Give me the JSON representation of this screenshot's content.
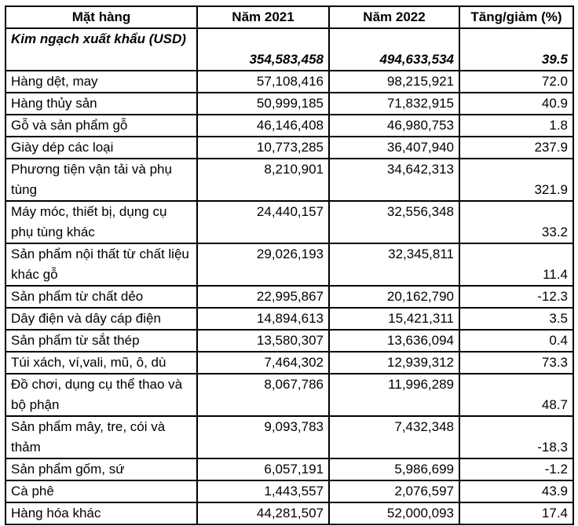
{
  "headers": [
    "Mặt hàng",
    "Năm 2021",
    "Năm 2022",
    "Tăng/giảm (%)"
  ],
  "total": {
    "name": "Kim ngạch xuất khẩu (USD)",
    "y2021": "354,583,458",
    "y2022": "494,633,534",
    "change": "39.5"
  },
  "rows": [
    {
      "name": "Hàng dệt, may",
      "y2021": "57,108,416",
      "y2022": "98,215,921",
      "change": "72.0"
    },
    {
      "name": "Hàng thủy sản",
      "y2021": "50,999,185",
      "y2022": "71,832,915",
      "change": "40.9"
    },
    {
      "name": "Gỗ và sản phẩm gỗ",
      "y2021": "46,146,408",
      "y2022": "46,980,753",
      "change": "1.8"
    },
    {
      "name": "Giày dép các loại",
      "y2021": "10,773,285",
      "y2022": "36,407,940",
      "change": "237.9"
    },
    {
      "name": "Phương tiện vận tải và phụ tùng",
      "y2021": "8,210,901",
      "y2022": "34,642,313",
      "change": "321.9"
    },
    {
      "name": "Máy móc, thiết bị, dụng cụ phụ tùng khác",
      "y2021": "24,440,157",
      "y2022": "32,556,348",
      "change": "33.2"
    },
    {
      "name": "Sản phẩm nội thất từ chất liệu khác gỗ",
      "y2021": "29,026,193",
      "y2022": "32,345,811",
      "change": "11.4"
    },
    {
      "name": "Sản phẩm từ chất dẻo",
      "y2021": "22,995,867",
      "y2022": "20,162,790",
      "change": "-12.3"
    },
    {
      "name": "Dây điện và dây cáp điện",
      "y2021": "14,894,613",
      "y2022": "15,421,311",
      "change": "3.5"
    },
    {
      "name": "Sản phẩm từ sắt thép",
      "y2021": "13,580,307",
      "y2022": "13,636,094",
      "change": "0.4"
    },
    {
      "name": "Túi xách, ví,vali, mũ, ô, dù",
      "y2021": "7,464,302",
      "y2022": "12,939,312",
      "change": "73.3"
    },
    {
      "name": "Đồ chơi, dụng cụ thể thao và bộ phận",
      "y2021": "8,067,786",
      "y2022": "11,996,289",
      "change": "48.7"
    },
    {
      "name": "Sản phẩm mây, tre, cói và thảm",
      "y2021": "9,093,783",
      "y2022": "7,432,348",
      "change": "-18.3"
    },
    {
      "name": "Sản phẩm gốm, sứ",
      "y2021": "6,057,191",
      "y2022": "5,986,699",
      "change": "-1.2"
    },
    {
      "name": "Cà phê",
      "y2021": "1,443,557",
      "y2022": "2,076,597",
      "change": "43.9"
    },
    {
      "name": "Hàng hóa khác",
      "y2021": "44,281,507",
      "y2022": "52,000,093",
      "change": "17.4"
    }
  ]
}
